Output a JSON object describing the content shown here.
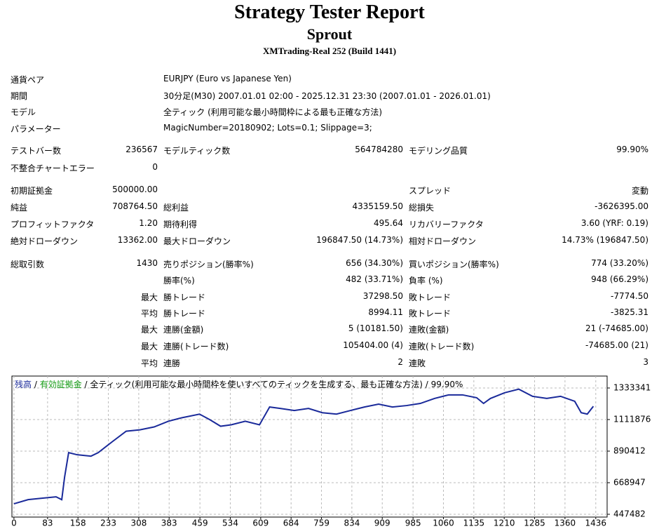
{
  "header": {
    "title": "Strategy Tester Report",
    "subtitle": "Sprout",
    "server": "XMTrading-Real 252 (Build 1441)"
  },
  "table": {
    "rows": [
      [
        "通貨ペア",
        null,
        "EURJPY (Euro vs Japanese Yen)",
        null,
        null,
        null
      ],
      [
        "期間",
        null,
        "30分足(M30) 2007.01.01 02:00 - 2025.12.31 23:30 (2007.01.01 - 2026.01.01)",
        null,
        null,
        null
      ],
      [
        "モデル",
        null,
        "全ティック (利用可能な最小時間枠による最も正確な方法)",
        null,
        null,
        null
      ],
      [
        "パラメーター",
        null,
        "MagicNumber=20180902; Lots=0.1; Slippage=3;",
        null,
        null,
        null
      ],
      [
        "テストバー数",
        "236567",
        "モデルティック数",
        "564784280",
        "モデリング品質",
        "99.90%"
      ],
      [
        "不整合チャートエラー",
        "0",
        null,
        null,
        null,
        null
      ],
      [
        "初期証拠金",
        "500000.00",
        null,
        null,
        "スプレッド",
        "変動"
      ],
      [
        "純益",
        "708764.50",
        "総利益",
        "4335159.50",
        "総損失",
        "-3626395.00"
      ],
      [
        "プロフィットファクタ",
        "1.20",
        "期待利得",
        "495.64",
        "リカバリーファクタ",
        "3.60 (YRF: 0.19)"
      ],
      [
        "絶対ドローダウン",
        "13362.00",
        "最大ドローダウン",
        "196847.50 (14.73%)",
        "相対ドローダウン",
        "14.73% (196847.50)"
      ],
      [
        "総取引数",
        "1430",
        "売りポジション(勝率%)",
        "656 (34.30%)",
        "買いポジション(勝率%)",
        "774 (33.20%)"
      ],
      [
        null,
        null,
        "勝率(%)",
        "482 (33.71%)",
        "負率 (%)",
        "948 (66.29%)"
      ],
      [
        null,
        "最大",
        "勝トレード",
        "37298.50",
        "敗トレード",
        "-7774.50"
      ],
      [
        null,
        "平均",
        "勝トレード",
        "8994.11",
        "敗トレード",
        "-3825.31"
      ],
      [
        null,
        "最大",
        "連勝(金額)",
        "5 (10181.50)",
        "連敗(金額)",
        "21 (-74685.00)"
      ],
      [
        null,
        "最大",
        "連勝(トレード数)",
        "105404.00 (4)",
        "連敗(トレード数)",
        "-74685.00 (21)"
      ],
      [
        null,
        "平均",
        "連勝",
        "2",
        "連敗",
        "3"
      ]
    ]
  },
  "chart_data": {
    "type": "line",
    "legend": [
      {
        "text": "残高",
        "color": "#1a2a9a"
      },
      {
        "text": " / ",
        "color": "#000000"
      },
      {
        "text": "有効証拠金",
        "color": "#119911"
      },
      {
        "text": " / 全ティック(利用可能な最小時間枠を使いすべてのティックを生成する、最も正確な方法) / 99.90%",
        "color": "#000000"
      }
    ],
    "x": [
      0,
      35,
      69,
      104,
      118,
      125,
      135,
      156,
      190,
      208,
      242,
      277,
      311,
      346,
      381,
      415,
      458,
      484,
      510,
      536,
      571,
      606,
      631,
      657,
      692,
      727,
      761,
      796,
      830,
      865,
      900,
      934,
      969,
      1003,
      1038,
      1073,
      1107,
      1142,
      1159,
      1176,
      1211,
      1246,
      1280,
      1315,
      1349,
      1384,
      1400,
      1415,
      1430
    ],
    "series": [
      {
        "name": "残高",
        "color": "#1a2a9a",
        "values": [
          521000,
          550000,
          560000,
          570000,
          550000,
          708000,
          880000,
          865000,
          855000,
          880000,
          955000,
          1030000,
          1040000,
          1060000,
          1100000,
          1125000,
          1150000,
          1110000,
          1065000,
          1075000,
          1100000,
          1075000,
          1200000,
          1190000,
          1175000,
          1190000,
          1160000,
          1150000,
          1175000,
          1200000,
          1220000,
          1200000,
          1210000,
          1225000,
          1260000,
          1285000,
          1285000,
          1265000,
          1225000,
          1260000,
          1300000,
          1325000,
          1275000,
          1260000,
          1275000,
          1240000,
          1160000,
          1150000,
          1205000
        ]
      }
    ],
    "xlim": [
      -5,
      1464
    ],
    "ylim": [
      427800,
      1417000
    ],
    "xticks": [
      0,
      83,
      158,
      233,
      308,
      383,
      459,
      534,
      609,
      684,
      759,
      834,
      909,
      985,
      1060,
      1135,
      1210,
      1285,
      1360,
      1436
    ],
    "yticks": [
      447482,
      668947,
      890412,
      1111876,
      1333341
    ],
    "grid": true
  }
}
